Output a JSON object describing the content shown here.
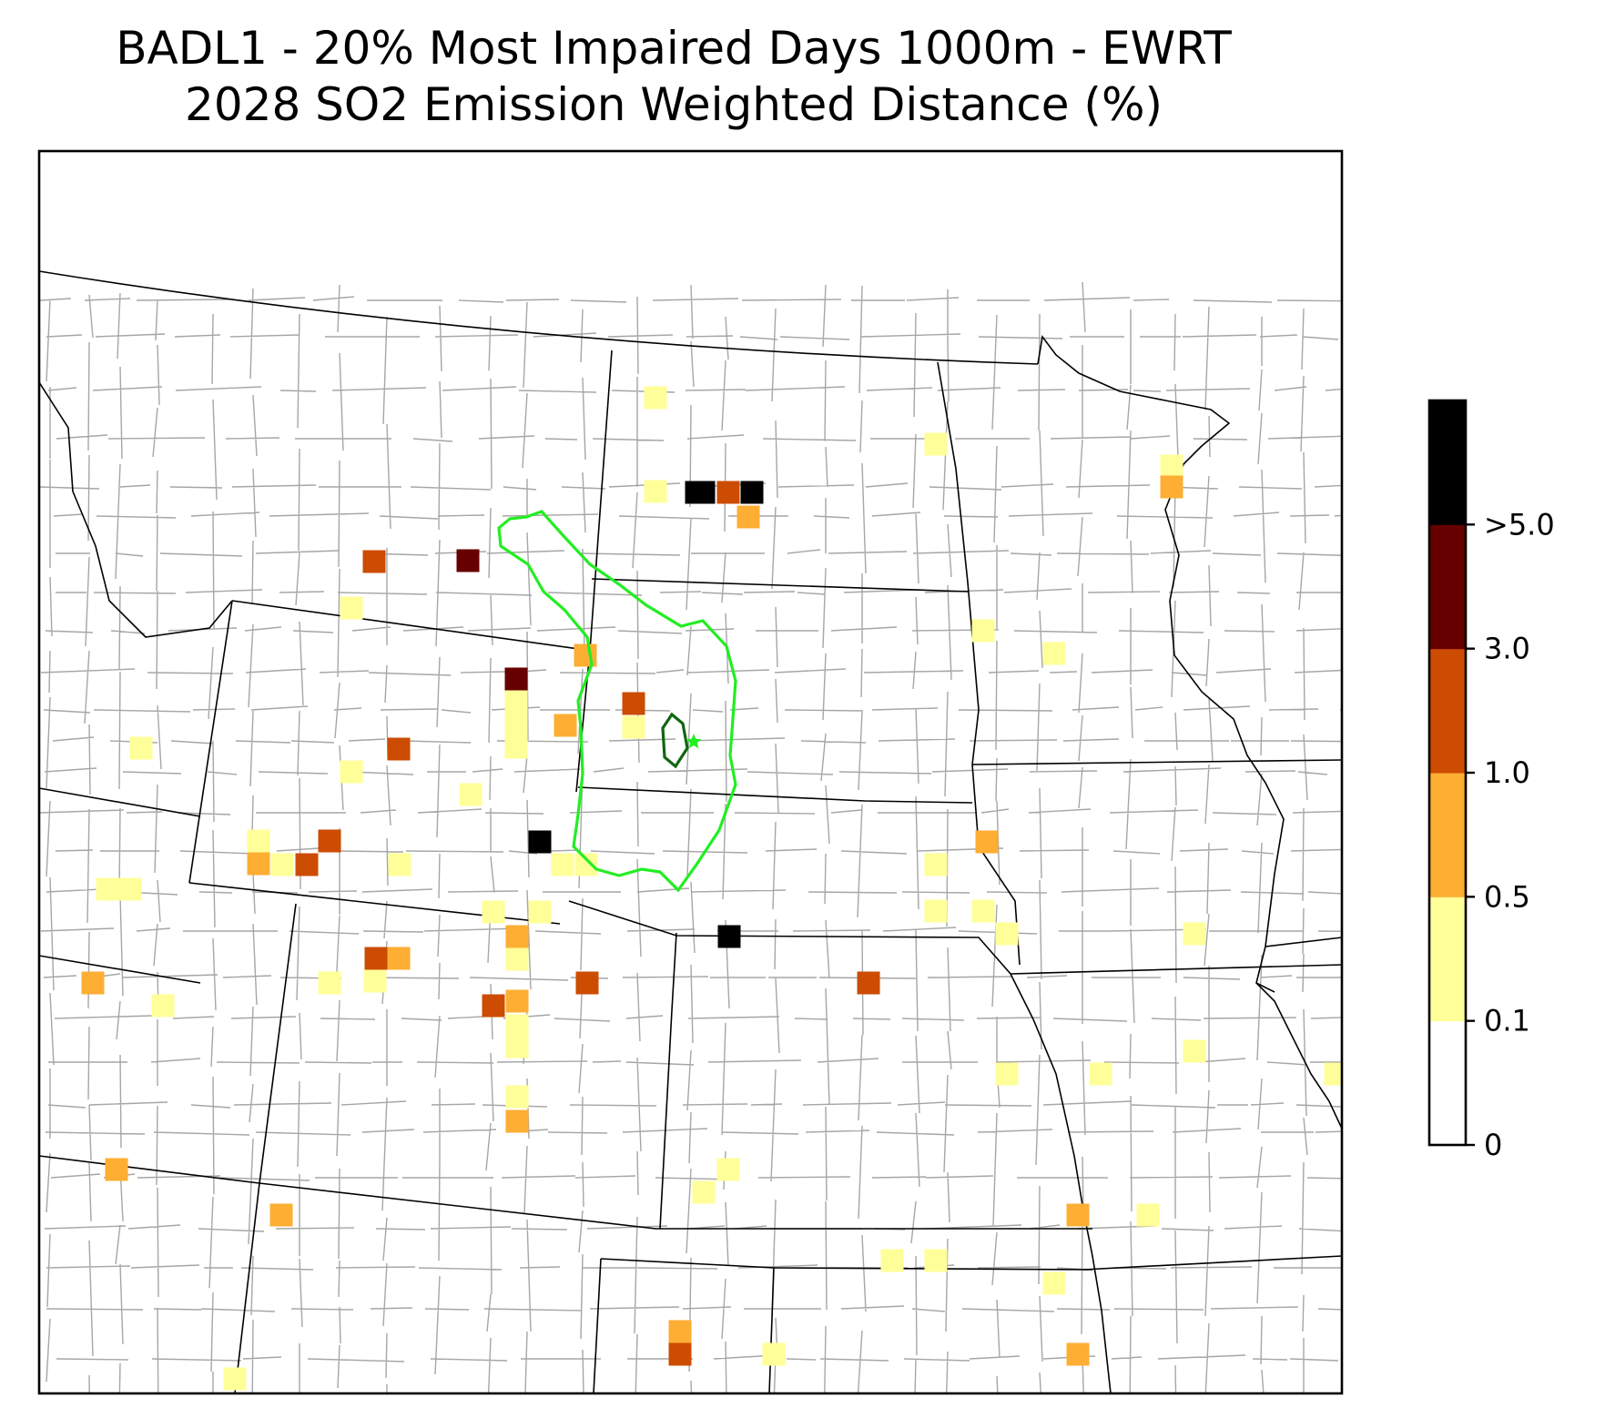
{
  "title": {
    "line1": "BADL1 - 20% Most Impaired Days 1000m - EWRT",
    "line2": "2028 SO2 Emission Weighted Distance (%)"
  },
  "colorbar": {
    "tick_labels": [
      "0",
      "0.1",
      "0.5",
      "1.0",
      "3.0",
      ">5.0"
    ],
    "bins": [
      {
        "label": "0 - 0.1",
        "color": "#ffffff"
      },
      {
        "label": "0.1 - 0.5",
        "color": "#ffff99"
      },
      {
        "label": "0.5 - 1.0",
        "color": "#fdae33"
      },
      {
        "label": "1.0 - 3.0",
        "color": "#cc4c02"
      },
      {
        "label": "3.0 - 5.0",
        "color": "#660000"
      },
      {
        "label": ">5.0",
        "color": "#000000"
      }
    ]
  },
  "colors": {
    "state_border": "#000000",
    "county_border": "#a6a6a6",
    "contour_outer": "#22ee22",
    "contour_inner": "#116611",
    "site_marker": "#22ee22"
  },
  "icons": {
    "site_marker": "star-icon"
  }
}
